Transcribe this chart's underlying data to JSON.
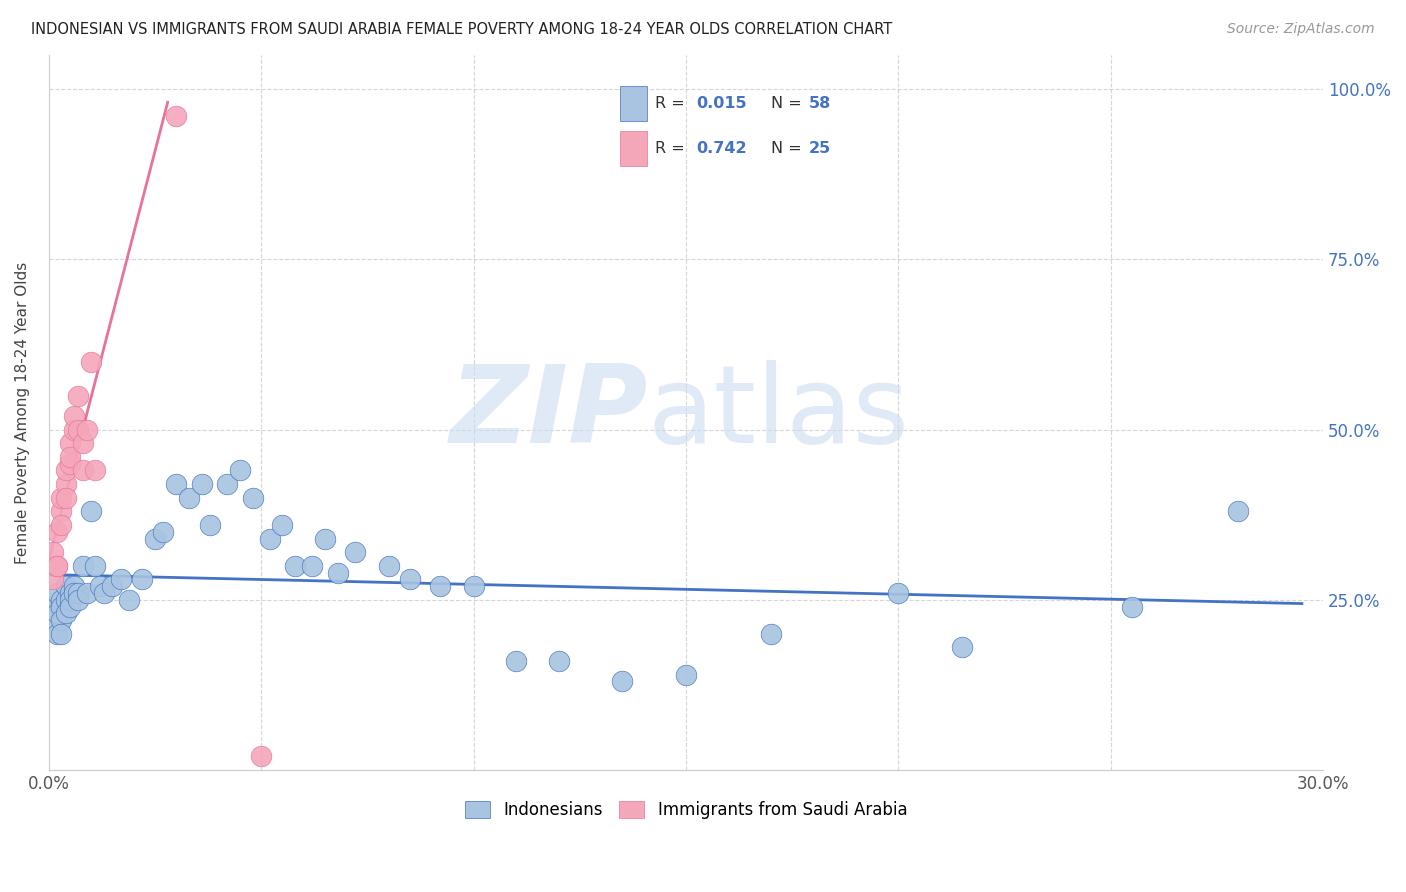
{
  "title": "INDONESIAN VS IMMIGRANTS FROM SAUDI ARABIA FEMALE POVERTY AMONG 18-24 YEAR OLDS CORRELATION CHART",
  "source": "Source: ZipAtlas.com",
  "ylabel": "Female Poverty Among 18-24 Year Olds",
  "xlim": [
    0.0,
    0.3
  ],
  "ylim": [
    0.0,
    1.05
  ],
  "blue_color": "#a8c4e0",
  "pink_color": "#f4a7b9",
  "blue_line_color": "#4472c4",
  "pink_line_color": "#e8729a",
  "legend_text_color": "#4472c4",
  "R_blue": 0.015,
  "N_blue": 58,
  "R_pink": 0.742,
  "N_pink": 25,
  "indo_x": [
    0.001,
    0.001,
    0.002,
    0.002,
    0.002,
    0.003,
    0.003,
    0.003,
    0.003,
    0.004,
    0.004,
    0.004,
    0.005,
    0.005,
    0.005,
    0.006,
    0.006,
    0.007,
    0.007,
    0.008,
    0.009,
    0.01,
    0.011,
    0.012,
    0.013,
    0.015,
    0.017,
    0.019,
    0.022,
    0.025,
    0.027,
    0.03,
    0.033,
    0.036,
    0.038,
    0.042,
    0.045,
    0.048,
    0.052,
    0.055,
    0.058,
    0.062,
    0.065,
    0.068,
    0.072,
    0.08,
    0.085,
    0.092,
    0.1,
    0.11,
    0.12,
    0.135,
    0.15,
    0.17,
    0.2,
    0.215,
    0.255,
    0.28
  ],
  "indo_y": [
    0.24,
    0.22,
    0.26,
    0.23,
    0.2,
    0.25,
    0.24,
    0.22,
    0.2,
    0.27,
    0.25,
    0.23,
    0.26,
    0.25,
    0.24,
    0.27,
    0.26,
    0.26,
    0.25,
    0.3,
    0.26,
    0.38,
    0.3,
    0.27,
    0.26,
    0.27,
    0.28,
    0.25,
    0.28,
    0.34,
    0.35,
    0.42,
    0.4,
    0.42,
    0.36,
    0.42,
    0.44,
    0.4,
    0.34,
    0.36,
    0.3,
    0.3,
    0.34,
    0.29,
    0.32,
    0.3,
    0.28,
    0.27,
    0.27,
    0.16,
    0.16,
    0.13,
    0.14,
    0.2,
    0.26,
    0.18,
    0.24,
    0.38
  ],
  "saudi_x": [
    0.001,
    0.001,
    0.002,
    0.002,
    0.002,
    0.003,
    0.003,
    0.003,
    0.004,
    0.004,
    0.004,
    0.005,
    0.005,
    0.005,
    0.006,
    0.006,
    0.007,
    0.007,
    0.008,
    0.008,
    0.009,
    0.01,
    0.011,
    0.03,
    0.05
  ],
  "saudi_y": [
    0.28,
    0.32,
    0.3,
    0.35,
    0.3,
    0.38,
    0.4,
    0.36,
    0.42,
    0.44,
    0.4,
    0.45,
    0.48,
    0.46,
    0.5,
    0.52,
    0.55,
    0.5,
    0.44,
    0.48,
    0.5,
    0.6,
    0.44,
    0.96,
    0.02
  ],
  "pink_line_x0": 0.0,
  "pink_line_x1": 0.028,
  "blue_line_x0": 0.0,
  "blue_line_x1": 0.295
}
